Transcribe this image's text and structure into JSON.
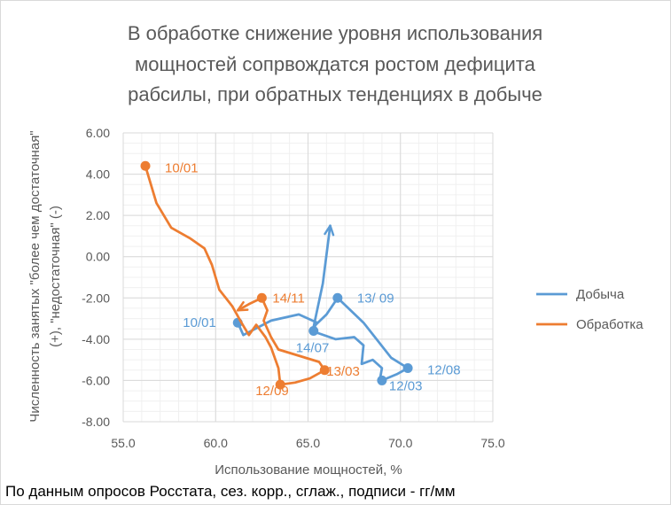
{
  "chart_data": {
    "type": "scatter",
    "title_lines": [
      "В обработке  снижение уровня использования",
      "мощностей  сопрвождатся ростом дефицита",
      "рабсилы, при обратных тенденциях в добыче"
    ],
    "xlabel": "Использование мощностей, %",
    "ylabel_lines": [
      "Численность занятых \"более чем достаточная\"",
      "(+), \"недостаточная\" (-)"
    ],
    "xlim": [
      55.0,
      75.0
    ],
    "ylim": [
      -8.0,
      6.0
    ],
    "x_ticks": [
      "55.0",
      "60.0",
      "65.0",
      "70.0",
      "75.0"
    ],
    "y_ticks": [
      "6.00",
      "4.00",
      "2.00",
      "0.00",
      "-2.00",
      "-4.00",
      "-6.00",
      "-8.00"
    ],
    "grid": true,
    "legend_position": "right",
    "series": [
      {
        "name": "Добыча",
        "color": "#5b9bd5",
        "path": [
          [
            61.2,
            -3.2
          ],
          [
            61.5,
            -3.8
          ],
          [
            63.0,
            -3.1
          ],
          [
            64.5,
            -2.8
          ],
          [
            65.5,
            -3.2
          ],
          [
            65.2,
            -3.6
          ],
          [
            66.5,
            -4.0
          ],
          [
            67.5,
            -3.9
          ],
          [
            68.0,
            -4.3
          ],
          [
            67.9,
            -5.2
          ],
          [
            68.5,
            -5.0
          ],
          [
            69.0,
            -5.4
          ],
          [
            68.9,
            -5.9
          ],
          [
            69.0,
            -6.0
          ],
          [
            69.8,
            -5.7
          ],
          [
            70.4,
            -5.4
          ],
          [
            69.5,
            -4.9
          ],
          [
            68.0,
            -3.2
          ],
          [
            66.6,
            -2.0
          ],
          [
            66.0,
            -2.8
          ],
          [
            65.3,
            -3.4
          ],
          [
            65.8,
            -1.3
          ],
          [
            66.2,
            1.5
          ]
        ],
        "points": [
          {
            "x": 61.2,
            "y": -3.2,
            "label": "10/01"
          },
          {
            "x": 65.3,
            "y": -3.6,
            "label": "14/07"
          },
          {
            "x": 66.6,
            "y": -2.0,
            "label": "13/ 09"
          },
          {
            "x": 69.0,
            "y": -6.0,
            "label": "12/03"
          },
          {
            "x": 70.4,
            "y": -5.4,
            "label": "12/08"
          }
        ],
        "arrow_end": {
          "x": 66.2,
          "y": 1.5
        }
      },
      {
        "name": "Обработка",
        "color": "#ed7d31",
        "path": [
          [
            56.2,
            4.4
          ],
          [
            56.8,
            2.6
          ],
          [
            57.6,
            1.4
          ],
          [
            58.6,
            0.9
          ],
          [
            59.4,
            0.4
          ],
          [
            59.8,
            -0.4
          ],
          [
            60.2,
            -1.6
          ],
          [
            60.9,
            -2.4
          ],
          [
            61.4,
            -3.2
          ],
          [
            61.8,
            -3.8
          ],
          [
            62.2,
            -3.3
          ],
          [
            62.7,
            -3.9
          ],
          [
            63.0,
            -4.4
          ],
          [
            63.4,
            -5.4
          ],
          [
            63.5,
            -6.2
          ],
          [
            64.3,
            -6.1
          ],
          [
            65.1,
            -5.9
          ],
          [
            65.9,
            -5.5
          ],
          [
            65.6,
            -5.1
          ],
          [
            64.5,
            -4.8
          ],
          [
            63.4,
            -4.5
          ],
          [
            63.0,
            -3.9
          ],
          [
            62.6,
            -3.1
          ],
          [
            62.8,
            -2.6
          ],
          [
            62.5,
            -2.0
          ],
          [
            61.8,
            -2.3
          ],
          [
            61.2,
            -2.6
          ]
        ],
        "points": [
          {
            "x": 56.2,
            "y": 4.4,
            "label": "10/01"
          },
          {
            "x": 62.5,
            "y": -2.0,
            "label": "14/11"
          },
          {
            "x": 65.9,
            "y": -5.5,
            "label": "13/03"
          },
          {
            "x": 63.5,
            "y": -6.2,
            "label": "12/09"
          }
        ],
        "arrow_end": {
          "x": 61.2,
          "y": -2.6
        }
      }
    ]
  },
  "footer": {
    "source_note": "По данным опросов Росстата, сез. корр., сглаж., подписи - гг/мм"
  }
}
